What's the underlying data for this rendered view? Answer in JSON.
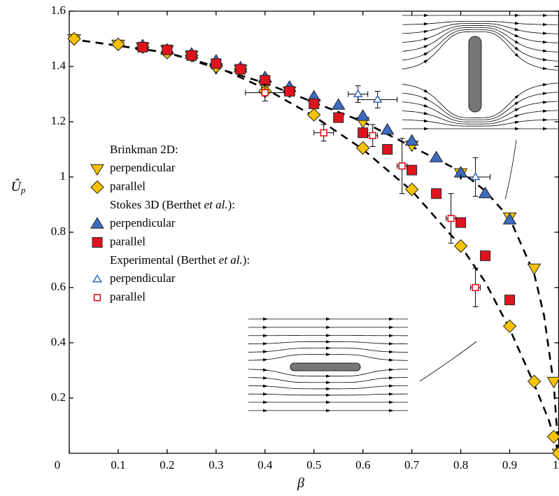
{
  "chart_data": {
    "type": "scatter",
    "x_label": "β",
    "y_label": {
      "main": "Û",
      "sub": "p"
    },
    "xlim": [
      0,
      1
    ],
    "ylim": [
      0,
      1.6
    ],
    "xticks": [
      0,
      0.1,
      0.2,
      0.3,
      0.4,
      0.5,
      0.6,
      0.7,
      0.8,
      0.9,
      1
    ],
    "yticks": [
      0.2,
      0.4,
      0.6,
      0.8,
      1,
      1.2,
      1.4,
      1.6
    ],
    "legend_titles": [
      "Brinkman 2D:",
      "Stokes 3D (Berthet et al.):",
      "Experimental (Berthet et al.):"
    ],
    "series": [
      {
        "name": "perpendicular",
        "marker": "v",
        "color": "#f7c300",
        "filled": true,
        "x": [
          0.01,
          0.1,
          0.15,
          0.2,
          0.25,
          0.3,
          0.35,
          0.4,
          0.45,
          0.5,
          0.6,
          0.7,
          0.8,
          0.9,
          0.95,
          0.99,
          1.0
        ],
        "values": [
          1.5,
          1.48,
          1.47,
          1.46,
          1.44,
          1.395,
          1.39,
          1.33,
          1.31,
          1.265,
          1.2,
          1.115,
          1.015,
          0.855,
          0.67,
          0.26,
          0.0
        ]
      },
      {
        "name": "parallel",
        "marker": "D",
        "color": "#f7c300",
        "filled": true,
        "x": [
          0.01,
          0.1,
          0.15,
          0.2,
          0.25,
          0.3,
          0.35,
          0.4,
          0.45,
          0.5,
          0.6,
          0.7,
          0.8,
          0.9,
          0.95,
          0.99,
          1.0
        ],
        "values": [
          1.5,
          1.48,
          1.47,
          1.45,
          1.44,
          1.4,
          1.39,
          1.31,
          1.31,
          1.225,
          1.105,
          0.955,
          0.75,
          0.46,
          0.26,
          0.06,
          0.0
        ]
      },
      {
        "name": "perpendicular",
        "marker": "^",
        "color": "#3d6cc0",
        "filled": true,
        "x": [
          0.15,
          0.2,
          0.25,
          0.3,
          0.35,
          0.4,
          0.45,
          0.5,
          0.55,
          0.6,
          0.65,
          0.7,
          0.75,
          0.8,
          0.85,
          0.9
        ],
        "values": [
          1.475,
          1.46,
          1.445,
          1.42,
          1.395,
          1.36,
          1.325,
          1.29,
          1.26,
          1.22,
          1.17,
          1.13,
          1.07,
          1.015,
          0.94,
          0.845
        ]
      },
      {
        "name": "parallel",
        "marker": "s",
        "color": "#e0141e",
        "filled": true,
        "x": [
          0.15,
          0.2,
          0.25,
          0.3,
          0.35,
          0.4,
          0.45,
          0.5,
          0.55,
          0.6,
          0.65,
          0.7,
          0.75,
          0.8,
          0.85,
          0.9
        ],
        "values": [
          1.47,
          1.46,
          1.44,
          1.41,
          1.39,
          1.35,
          1.31,
          1.265,
          1.215,
          1.16,
          1.1,
          1.025,
          0.94,
          0.835,
          0.715,
          0.555
        ]
      },
      {
        "name": "perpendicular",
        "marker": "^",
        "color": "#3d6cc0",
        "filled": false,
        "x": [
          0.59,
          0.63,
          0.83
        ],
        "values": [
          1.3,
          1.28,
          1.0
        ],
        "xerr": [
          0.02,
          0.04,
          0.03
        ],
        "yerr": [
          0.03,
          0.03,
          0.07
        ]
      },
      {
        "name": "parallel",
        "marker": "s",
        "color": "#e0141e",
        "filled": false,
        "x": [
          0.4,
          0.52,
          0.62,
          0.68,
          0.78,
          0.83
        ],
        "values": [
          1.305,
          1.16,
          1.15,
          1.04,
          0.85,
          0.6
        ],
        "xerr": [
          0.04,
          0.02,
          0.01,
          0.01,
          0.01,
          0.01
        ],
        "yerr": [
          0.03,
          0.03,
          0.04,
          0.1,
          0.09,
          0.07
        ]
      },
      {
        "marker": "line",
        "color": "#000",
        "x": [
          0,
          0.2,
          0.4,
          0.5,
          0.6,
          0.7,
          0.8,
          0.85,
          0.9,
          0.95,
          0.97,
          0.99,
          1.0
        ],
        "values": [
          1.5,
          1.45,
          1.34,
          1.27,
          1.2,
          1.11,
          1.02,
          0.95,
          0.85,
          0.65,
          0.5,
          0.25,
          0.0
        ]
      },
      {
        "marker": "line",
        "color": "#000",
        "x": [
          0,
          0.2,
          0.3,
          0.4,
          0.5,
          0.6,
          0.7,
          0.8,
          0.85,
          0.9,
          0.95,
          0.98,
          1.0
        ],
        "values": [
          1.5,
          1.45,
          1.4,
          1.32,
          1.22,
          1.1,
          0.95,
          0.75,
          0.62,
          0.45,
          0.25,
          0.12,
          0.0
        ]
      }
    ]
  }
}
